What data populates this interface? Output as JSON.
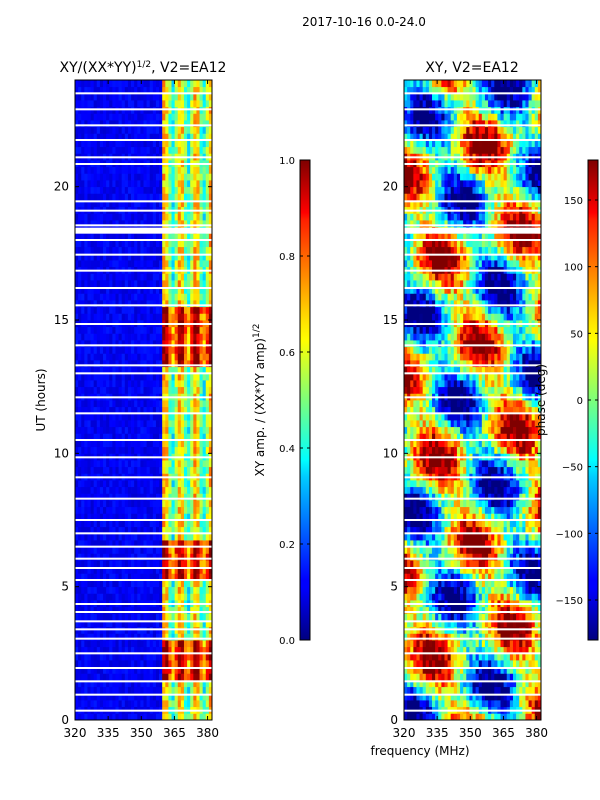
{
  "figure": {
    "suptitle": "2017-10-16 0.0-24.0",
    "shared_xlabel": "frequency (MHz)"
  },
  "chart_data": [
    {
      "type": "heatmap",
      "title_main": "XY/(XX*YY)",
      "title_sup": "1/2",
      "title_suffix": ", V2=EA12",
      "xlabel": "frequency (MHz)",
      "ylabel": "UT (hours)",
      "xlim": [
        320,
        382
      ],
      "ylim": [
        0,
        24
      ],
      "xticks": [
        320,
        335,
        350,
        365,
        380
      ],
      "yticks": [
        0,
        5,
        10,
        15,
        20
      ],
      "rfi_band_mhz": [
        359,
        382
      ],
      "colorbar": {
        "label": "XY amp. / (XX*YY amp)",
        "label_sup": "1/2",
        "range": [
          0.0,
          1.0
        ],
        "ticks": [
          "0.0",
          "0.2",
          "0.4",
          "0.6",
          "0.8",
          "1.0"
        ],
        "tick_values": [
          0.0,
          0.2,
          0.4,
          0.6,
          0.8,
          1.0
        ],
        "colormap": "jet"
      }
    },
    {
      "type": "heatmap",
      "title": "XY, V2=EA12",
      "xlabel": "frequency (MHz)",
      "ylabel": "",
      "xlim": [
        320,
        382
      ],
      "ylim": [
        0,
        24
      ],
      "xticks": [
        320,
        335,
        350,
        365,
        380
      ],
      "yticks": [
        0,
        5,
        10,
        15,
        20
      ],
      "colorbar": {
        "label": "phase (deg)",
        "range": [
          -180,
          180
        ],
        "ticks": [
          "−150",
          "−100",
          "−50",
          "0",
          "50",
          "100",
          "150"
        ],
        "tick_values": [
          -150,
          -100,
          -50,
          0,
          50,
          100,
          150
        ],
        "colormap": "jet"
      }
    }
  ],
  "flagged_hours": [
    0.35,
    0.95,
    1.45,
    1.95,
    2.5,
    3.05,
    3.4,
    3.7,
    4.05,
    4.35,
    5.25,
    5.7,
    6.05,
    6.5,
    7.0,
    7.5,
    8.3,
    9.1,
    9.85,
    10.5,
    11.5,
    12.1,
    13.0,
    13.3,
    14.05,
    14.85,
    15.55,
    16.2,
    16.85,
    17.45,
    18.0,
    18.35,
    18.55,
    19.1,
    19.45,
    20.85,
    21.1,
    21.75,
    22.3,
    22.9,
    23.5
  ]
}
